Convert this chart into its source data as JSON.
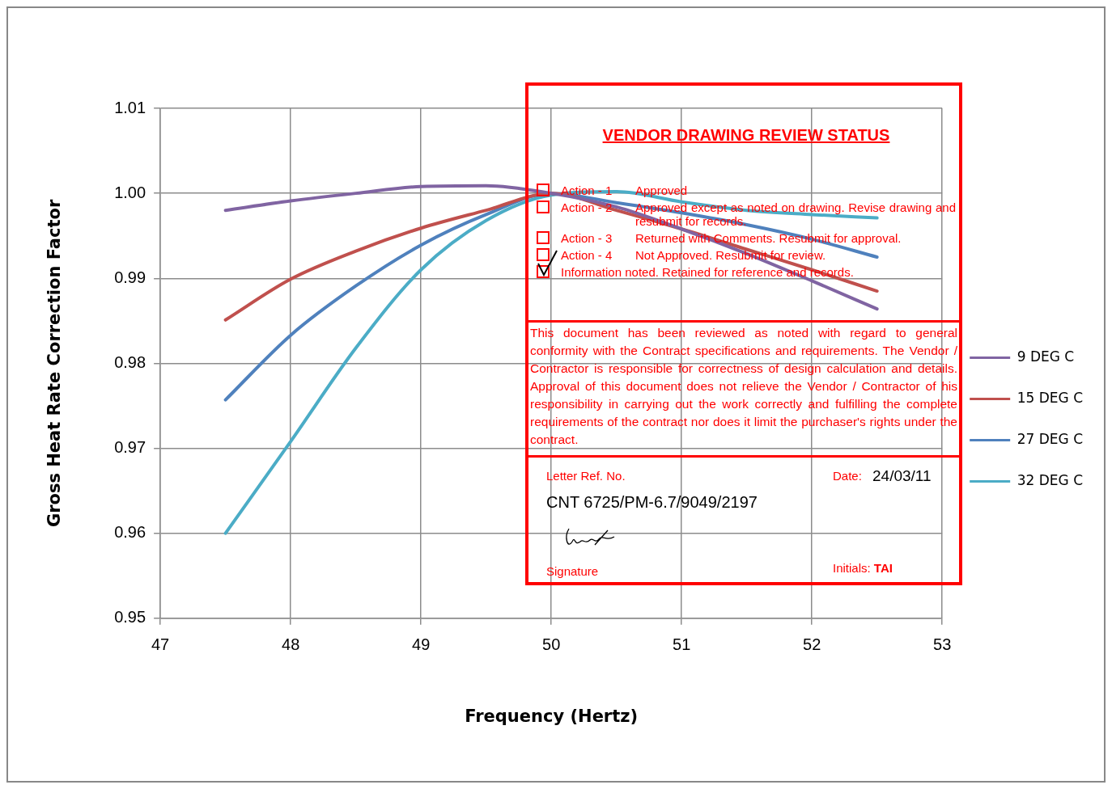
{
  "chart_data": {
    "type": "line",
    "xlabel": "Frequency (Hertz)",
    "ylabel": "Gross Heat Rate Correction Factor",
    "x": [
      47.5,
      48,
      48.5,
      49,
      49.5,
      50,
      50.5,
      51,
      51.5,
      52,
      52.5
    ],
    "series": [
      {
        "name": "9 DEG C",
        "color": "#8064a2",
        "values": [
          0.998,
          0.9991,
          1.0,
          1.0008,
          1.0009,
          1.0,
          0.9984,
          0.9958,
          0.9929,
          0.9897,
          0.9864
        ]
      },
      {
        "name": "15 DEG C",
        "color": "#c0504d",
        "values": [
          0.9851,
          0.9899,
          0.9932,
          0.9959,
          0.998,
          1.0,
          0.998,
          0.9958,
          0.9934,
          0.991,
          0.9885
        ]
      },
      {
        "name": "27 DEG C",
        "color": "#4f81bd",
        "values": [
          0.9757,
          0.9833,
          0.9891,
          0.9939,
          0.9975,
          1.0,
          0.9989,
          0.9977,
          0.9963,
          0.9946,
          0.9925
        ]
      },
      {
        "name": "32 DEG C",
        "color": "#4bacc6",
        "values": [
          0.96,
          0.9708,
          0.9818,
          0.991,
          0.9968,
          0.9998,
          1.0002,
          0.999,
          0.998,
          0.9975,
          0.9971
        ]
      }
    ],
    "xlim": [
      47,
      53
    ],
    "xticks": [
      47,
      48,
      49,
      50,
      51,
      52,
      53
    ],
    "ylim": [
      0.95,
      1.01
    ],
    "yticks": [
      {
        "value": 0.95,
        "label": "0.95"
      },
      {
        "value": 0.96,
        "label": "0.96"
      },
      {
        "value": 0.97,
        "label": "0.97"
      },
      {
        "value": 0.98,
        "label": "0.98"
      },
      {
        "value": 0.99,
        "label": "0.99"
      },
      {
        "value": 1.0,
        "label": "1.00"
      },
      {
        "value": 1.01,
        "label": "1.01"
      }
    ],
    "grid": true,
    "legend": "right",
    "marker": "none",
    "line_style": "solid",
    "annotations": [
      "VENDOR DRAWING REVIEW STATUS",
      "Action - 1",
      "Approved",
      "Action - 2",
      "Approved except as noted on drawing. Revise drawing and resubmit for records.",
      "Action - 3",
      "Returned with Comments. Resubmit for approval.",
      "Action - 4",
      "Not Approved. Resubmit for review.",
      "Information noted. Retained for reference and records.",
      "This document has been reviewed as noted with regard to general conformity with the Contract specifications and requirements. The Vendor / Contractor is responsible for correctness of design calculation and details. Approval of this document does not relieve the Vendor / Contractor of his responsibility in carrying out the work correctly and fulfilling the complete requirements of the contract nor does it limit the purchaser's rights under the contract.",
      "Letter Ref. No.",
      "Date:",
      "24/03/11",
      "CNT 6725/PM-6.7/9049/2197",
      "Signature",
      "Initials:",
      "TAI"
    ]
  }
}
